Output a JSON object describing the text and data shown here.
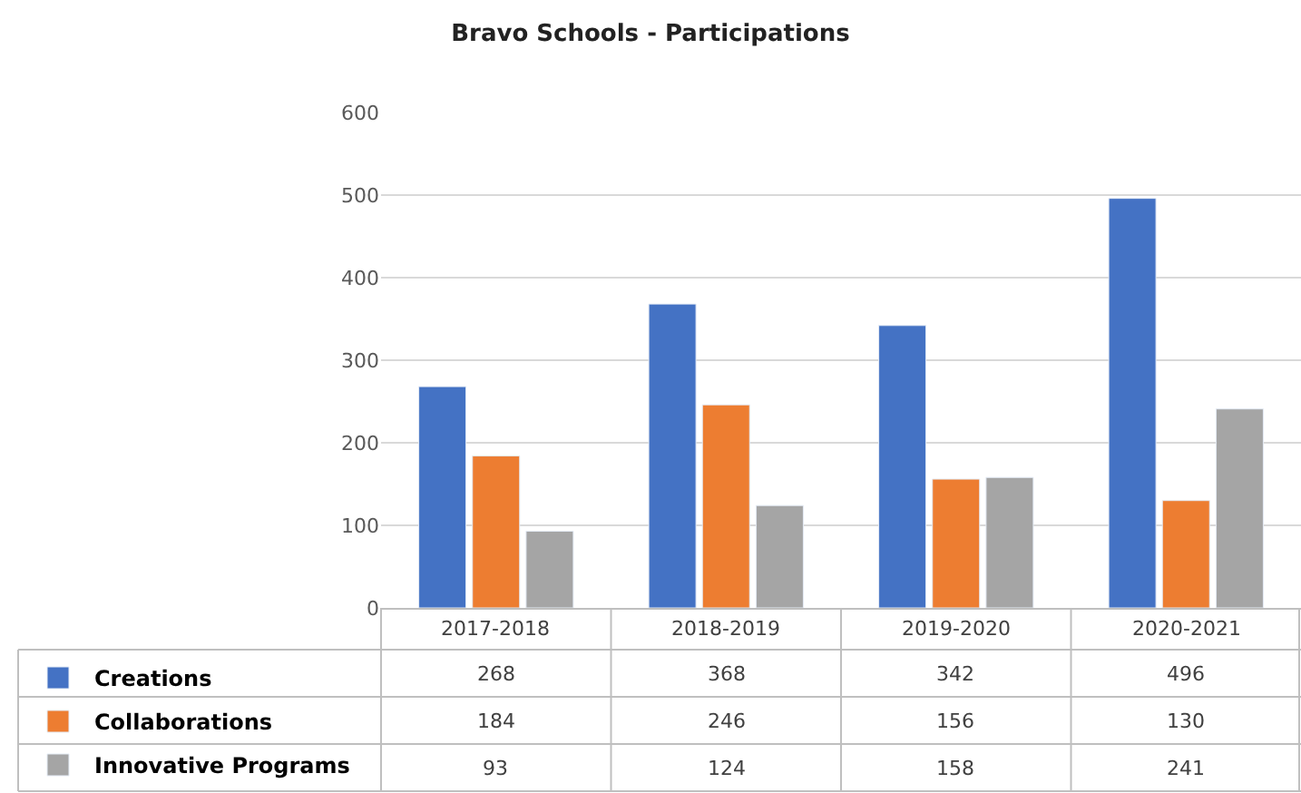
{
  "chart_data": {
    "type": "bar",
    "title": "Bravo Schools - Participations",
    "categories": [
      "2017-2018",
      "2018-2019",
      "2019-2020",
      "2020-2021"
    ],
    "series": [
      {
        "name": "Creations",
        "color": "#4472c4",
        "values": [
          268,
          368,
          342,
          496
        ]
      },
      {
        "name": "Collaborations",
        "color": "#ed7d31",
        "values": [
          184,
          246,
          156,
          130
        ]
      },
      {
        "name": "Innovative Programs",
        "color": "#a5a5a5",
        "values": [
          93,
          124,
          158,
          241
        ]
      }
    ],
    "ylim": [
      0,
      600
    ],
    "yticks": [
      0,
      100,
      200,
      300,
      400,
      500,
      600
    ],
    "grid": "y",
    "data_labels": true,
    "legend": "bottom"
  }
}
